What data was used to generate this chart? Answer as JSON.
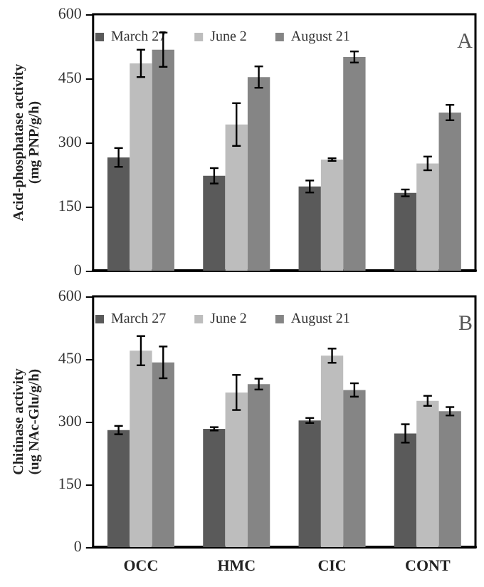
{
  "chart_data": [
    {
      "type": "bar",
      "ylabel": "Acid-phosphatase activity\n(mg PNP/g/h)",
      "categories": [
        null,
        null,
        null,
        null
      ],
      "tick_labels": "y",
      "ylim": [
        0,
        600
      ],
      "yticks": [
        0,
        150,
        300,
        450,
        600
      ],
      "legend": "top",
      "annotations": [
        "A"
      ],
      "series": [
        {
          "name": "March 27",
          "color": "#5a5a5a",
          "values": [
            265,
            222,
            197,
            182
          ],
          "errors": [
            22,
            18,
            14,
            8
          ]
        },
        {
          "name": "June 2",
          "color": "#bdbdbd",
          "values": [
            485,
            342,
            260,
            251
          ],
          "errors": [
            32,
            50,
            3,
            16
          ]
        },
        {
          "name": "August 21",
          "color": "#858585",
          "values": [
            517,
            453,
            500,
            370
          ],
          "errors": [
            40,
            25,
            13,
            18
          ]
        }
      ]
    },
    {
      "type": "bar",
      "ylabel": "Chitinase activity\n(ug NAc-Glu/g/h)",
      "categories": [
        "OCC",
        "HMC",
        "CIC",
        "CONT"
      ],
      "ylim": [
        0,
        600
      ],
      "yticks": [
        0,
        150,
        300,
        450,
        600
      ],
      "legend": "top",
      "annotations": [
        "B"
      ],
      "series": [
        {
          "name": "March 27",
          "color": "#5a5a5a",
          "values": [
            280,
            283,
            303,
            272
          ],
          "errors": [
            10,
            4,
            6,
            22
          ]
        },
        {
          "name": "June 2",
          "color": "#bdbdbd",
          "values": [
            470,
            370,
            458,
            350
          ],
          "errors": [
            35,
            42,
            17,
            12
          ]
        },
        {
          "name": "August 21",
          "color": "#858585",
          "values": [
            442,
            390,
            376,
            325
          ],
          "errors": [
            38,
            13,
            16,
            10
          ]
        }
      ]
    }
  ]
}
